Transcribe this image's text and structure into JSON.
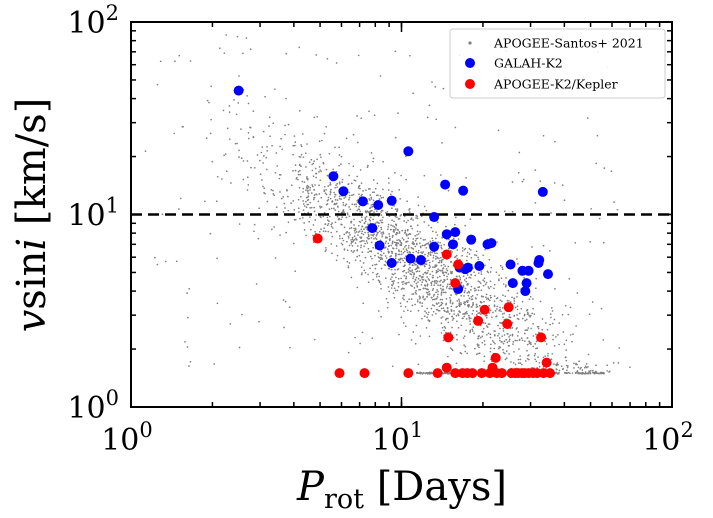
{
  "chart_data": {
    "type": "scatter",
    "xscale": "log",
    "yscale": "log",
    "xlim": [
      1,
      100
    ],
    "ylim": [
      1,
      100
    ],
    "xlabel": {
      "italic": "P",
      "sub": "rot",
      "rest": " [Days]"
    },
    "ylabel": {
      "pre": "v",
      "mid": "sin",
      "italic": "i",
      "rest": " [km/s]"
    },
    "xticks": [
      {
        "base": "10",
        "exp": "0",
        "value": 1
      },
      {
        "base": "10",
        "exp": "1",
        "value": 10
      },
      {
        "base": "10",
        "exp": "2",
        "value": 100
      }
    ],
    "yticks": [
      {
        "base": "10",
        "exp": "0",
        "value": 1
      },
      {
        "base": "10",
        "exp": "1",
        "value": 10
      },
      {
        "base": "10",
        "exp": "2",
        "value": 100
      }
    ],
    "hline": {
      "y": 10,
      "style": "dashed",
      "color": "#000000"
    },
    "legend_position": "top-right",
    "series": [
      {
        "name": "APOGEE-Santos+ 2021",
        "marker": "dot",
        "color": "#808080",
        "generated": true,
        "count": 2600
      },
      {
        "name": "GALAH-K2",
        "marker": "circle",
        "color": "#0000ff",
        "points": [
          [
            2.5,
            44
          ],
          [
            5.6,
            15.8
          ],
          [
            6.1,
            13.2
          ],
          [
            7.2,
            11.7
          ],
          [
            7.8,
            8.5
          ],
          [
            8.2,
            11.2
          ],
          [
            8.3,
            6.9
          ],
          [
            9.2,
            11.8
          ],
          [
            9.2,
            5.6
          ],
          [
            10.6,
            21.3
          ],
          [
            10.8,
            5.9
          ],
          [
            11.8,
            5.8
          ],
          [
            13.2,
            9.7
          ],
          [
            13.2,
            6.8
          ],
          [
            14.5,
            14.3
          ],
          [
            14.7,
            7.9
          ],
          [
            15.5,
            7.0
          ],
          [
            15.8,
            8.1
          ],
          [
            16.2,
            4.1
          ],
          [
            16.4,
            5.3
          ],
          [
            16.9,
            13.3
          ],
          [
            17.2,
            5.2
          ],
          [
            17.6,
            5.3
          ],
          [
            18.1,
            7.4
          ],
          [
            19.4,
            5.4
          ],
          [
            20.8,
            7.0
          ],
          [
            21.5,
            7.1
          ],
          [
            25.3,
            5.5
          ],
          [
            25.8,
            4.4
          ],
          [
            28.0,
            5.1
          ],
          [
            28.7,
            4.0
          ],
          [
            29.0,
            4.4
          ],
          [
            29.5,
            5.1
          ],
          [
            32.1,
            5.6
          ],
          [
            32.3,
            5.8
          ],
          [
            33.3,
            13.1
          ],
          [
            34.8,
            4.9
          ]
        ]
      },
      {
        "name": "APOGEE-K2/Kepler",
        "marker": "circle",
        "color": "#ff0000",
        "points": [
          [
            4.9,
            7.5
          ],
          [
            5.9,
            1.5
          ],
          [
            7.3,
            1.5
          ],
          [
            10.6,
            1.5
          ],
          [
            13.6,
            1.5
          ],
          [
            14.7,
            6.2
          ],
          [
            14.7,
            1.6
          ],
          [
            14.9,
            2.3
          ],
          [
            15.8,
            4.4
          ],
          [
            15.8,
            1.5
          ],
          [
            16.2,
            5.5
          ],
          [
            16.8,
            1.5
          ],
          [
            17.5,
            1.5
          ],
          [
            18.3,
            1.5
          ],
          [
            19.2,
            2.8
          ],
          [
            19.8,
            1.5
          ],
          [
            20.3,
            3.2
          ],
          [
            21.2,
            1.5
          ],
          [
            21.7,
            1.6
          ],
          [
            22.3,
            1.8
          ],
          [
            22.5,
            1.5
          ],
          [
            23.5,
            1.5
          ],
          [
            24.6,
            2.7
          ],
          [
            24.9,
            3.3
          ],
          [
            25.5,
            1.5
          ],
          [
            26.3,
            1.5
          ],
          [
            27.0,
            1.5
          ],
          [
            27.9,
            1.5
          ],
          [
            28.5,
            1.5
          ],
          [
            29.5,
            1.5
          ],
          [
            30.6,
            1.5
          ],
          [
            31.7,
            1.5
          ],
          [
            32.8,
            2.3
          ],
          [
            33.5,
            1.5
          ],
          [
            34.4,
            1.7
          ],
          [
            35.4,
            1.5
          ]
        ]
      }
    ]
  }
}
